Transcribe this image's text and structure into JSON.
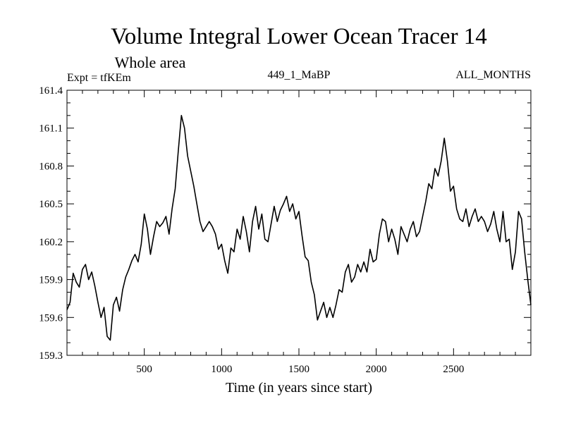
{
  "chart_data": {
    "type": "line",
    "title": "Volume Integral Lower Ocean Tracer 14",
    "subtitle": "Whole area",
    "expt_label": "Expt = tfKEm",
    "run_label": "449_1_MaBP",
    "months_label": "ALL_MONTHS",
    "xlabel": "Time (in years since start)",
    "ylabel": "",
    "xlim": [
      0,
      3000
    ],
    "ylim": [
      159.3,
      161.4
    ],
    "x_ticks": [
      500,
      1000,
      1500,
      2000,
      2500
    ],
    "y_ticks": [
      159.3,
      159.6,
      159.9,
      160.2,
      160.5,
      160.8,
      161.1,
      161.4
    ],
    "x_tick_labels": [
      "500",
      "1000",
      "1500",
      "2000",
      "2500"
    ],
    "y_tick_labels": [
      "159.3",
      "159.6",
      "159.9",
      "160.2",
      "160.5",
      "160.8",
      "161.1",
      "161.4"
    ],
    "grid": false,
    "legend": "none",
    "line_color": "#000000",
    "series": [
      {
        "x": [
          0,
          20,
          40,
          60,
          80,
          100,
          120,
          140,
          160,
          180,
          200,
          220,
          240,
          260,
          280,
          300,
          320,
          340,
          360,
          380,
          400,
          420,
          440,
          460,
          480,
          500,
          520,
          540,
          560,
          580,
          600,
          620,
          640,
          660,
          680,
          700,
          720,
          740,
          760,
          780,
          800,
          820,
          840,
          860,
          880,
          900,
          920,
          940,
          960,
          980,
          1000,
          1020,
          1040,
          1060,
          1080,
          1100,
          1120,
          1140,
          1160,
          1180,
          1200,
          1220,
          1240,
          1260,
          1280,
          1300,
          1320,
          1340,
          1360,
          1380,
          1400,
          1420,
          1440,
          1460,
          1480,
          1500,
          1520,
          1540,
          1560,
          1580,
          1600,
          1620,
          1640,
          1660,
          1680,
          1700,
          1720,
          1740,
          1760,
          1780,
          1800,
          1820,
          1840,
          1860,
          1880,
          1900,
          1920,
          1940,
          1960,
          1980,
          2000,
          2020,
          2040,
          2060,
          2080,
          2100,
          2120,
          2140,
          2160,
          2180,
          2200,
          2220,
          2240,
          2260,
          2280,
          2300,
          2320,
          2340,
          2360,
          2380,
          2400,
          2420,
          2440,
          2460,
          2480,
          2500,
          2520,
          2540,
          2560,
          2580,
          2600,
          2620,
          2640,
          2660,
          2680,
          2700,
          2720,
          2740,
          2760,
          2780,
          2800,
          2820,
          2840,
          2860,
          2880,
          2900,
          2920,
          2940,
          2960,
          2980,
          3000
        ],
        "y": [
          159.66,
          159.72,
          159.95,
          159.88,
          159.84,
          159.98,
          160.02,
          159.9,
          159.96,
          159.85,
          159.72,
          159.6,
          159.68,
          159.45,
          159.42,
          159.7,
          159.76,
          159.65,
          159.82,
          159.92,
          159.98,
          160.05,
          160.1,
          160.04,
          160.18,
          160.42,
          160.3,
          160.1,
          160.24,
          160.36,
          160.32,
          160.35,
          160.4,
          160.26,
          160.46,
          160.62,
          160.92,
          161.2,
          161.1,
          160.88,
          160.76,
          160.64,
          160.5,
          160.36,
          160.28,
          160.32,
          160.36,
          160.32,
          160.26,
          160.14,
          160.18,
          160.05,
          159.95,
          160.15,
          160.12,
          160.3,
          160.22,
          160.4,
          160.28,
          160.12,
          160.36,
          160.48,
          160.3,
          160.42,
          160.22,
          160.2,
          160.34,
          160.48,
          160.36,
          160.45,
          160.5,
          160.56,
          160.44,
          160.5,
          160.38,
          160.44,
          160.25,
          160.08,
          160.05,
          159.88,
          159.78,
          159.58,
          159.65,
          159.72,
          159.6,
          159.68,
          159.6,
          159.7,
          159.82,
          159.8,
          159.96,
          160.02,
          159.88,
          159.92,
          160.02,
          159.96,
          160.04,
          159.96,
          160.14,
          160.04,
          160.06,
          160.26,
          160.38,
          160.36,
          160.2,
          160.3,
          160.22,
          160.1,
          160.32,
          160.26,
          160.2,
          160.3,
          160.36,
          160.24,
          160.28,
          160.4,
          160.52,
          160.66,
          160.62,
          160.78,
          160.72,
          160.84,
          161.02,
          160.84,
          160.6,
          160.64,
          160.46,
          160.38,
          160.36,
          160.46,
          160.32,
          160.4,
          160.46,
          160.36,
          160.4,
          160.36,
          160.28,
          160.34,
          160.44,
          160.3,
          160.2,
          160.44,
          160.2,
          160.22,
          159.98,
          160.12,
          160.44,
          160.38,
          160.12,
          159.9,
          159.7
        ]
      }
    ]
  }
}
